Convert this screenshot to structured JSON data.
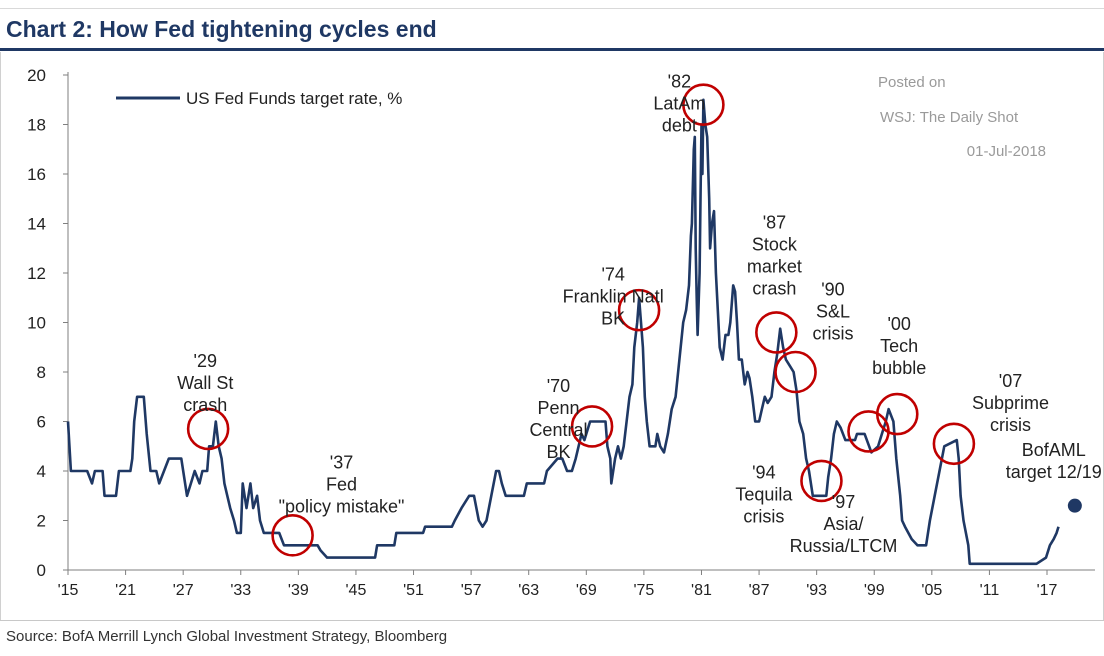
{
  "header": {
    "title": "Chart 2: How Fed tightening cycles end"
  },
  "source": "Source:  BofA Merrill Lynch Global Investment Strategy, Bloomberg",
  "watermark": [
    "Posted on",
    "WSJ: The Daily Shot",
    "01-Jul-2018"
  ],
  "colors": {
    "line": "#1f3864",
    "circle": "#c00000",
    "title": "#1f3864",
    "target_dot": "#1f3864"
  },
  "chart_data": {
    "type": "line",
    "xlim": [
      1915,
      2022
    ],
    "ylim": [
      0,
      20
    ],
    "grid": false,
    "legend_position": "top-left",
    "x_ticks": [
      {
        "value": 1915,
        "label": "'15"
      },
      {
        "value": 1921,
        "label": "'21"
      },
      {
        "value": 1927,
        "label": "'27"
      },
      {
        "value": 1933,
        "label": "'33"
      },
      {
        "value": 1939,
        "label": "'39"
      },
      {
        "value": 1945,
        "label": "'45"
      },
      {
        "value": 1951,
        "label": "'51"
      },
      {
        "value": 1957,
        "label": "'57"
      },
      {
        "value": 1963,
        "label": "'63"
      },
      {
        "value": 1969,
        "label": "'69"
      },
      {
        "value": 1975,
        "label": "'75"
      },
      {
        "value": 1981,
        "label": "'81"
      },
      {
        "value": 1987,
        "label": "'87"
      },
      {
        "value": 1993,
        "label": "'93"
      },
      {
        "value": 1999,
        "label": "'99"
      },
      {
        "value": 2005,
        "label": "'05"
      },
      {
        "value": 2011,
        "label": "'11"
      },
      {
        "value": 2017,
        "label": "'17"
      }
    ],
    "y_ticks": [
      "0",
      "2",
      "4",
      "6",
      "8",
      "10",
      "12",
      "14",
      "16",
      "18",
      "20"
    ],
    "series": [
      {
        "name": "US Fed Funds target rate, %",
        "points": [
          [
            1915,
            6
          ],
          [
            1915.3,
            4
          ],
          [
            1917,
            4
          ],
          [
            1917.5,
            3.5
          ],
          [
            1917.8,
            4
          ],
          [
            1918.6,
            4
          ],
          [
            1918.8,
            3
          ],
          [
            1920,
            3
          ],
          [
            1920.3,
            4
          ],
          [
            1921.5,
            4
          ],
          [
            1921.7,
            4.5
          ],
          [
            1921.9,
            6
          ],
          [
            1922.2,
            7
          ],
          [
            1922.9,
            7
          ],
          [
            1923.2,
            5.5
          ],
          [
            1923.6,
            4
          ],
          [
            1924.2,
            4
          ],
          [
            1924.5,
            3.5
          ],
          [
            1925,
            4
          ],
          [
            1925.5,
            4.5
          ],
          [
            1926.8,
            4.5
          ],
          [
            1927,
            4
          ],
          [
            1927.4,
            3
          ],
          [
            1927.8,
            3.5
          ],
          [
            1928.2,
            4
          ],
          [
            1928.7,
            3.5
          ],
          [
            1929,
            4
          ],
          [
            1929.5,
            4
          ],
          [
            1929.7,
            5
          ],
          [
            1930.1,
            5
          ],
          [
            1930.4,
            6
          ],
          [
            1930.7,
            5
          ],
          [
            1931,
            4.5
          ],
          [
            1931.3,
            3.5
          ],
          [
            1931.6,
            3
          ],
          [
            1931.9,
            2.5
          ],
          [
            1932.3,
            2
          ],
          [
            1932.6,
            1.5
          ],
          [
            1933,
            1.5
          ],
          [
            1933.2,
            3.5
          ],
          [
            1933.6,
            2.5
          ],
          [
            1934,
            3.5
          ],
          [
            1934.3,
            2.5
          ],
          [
            1934.7,
            3
          ],
          [
            1935,
            2
          ],
          [
            1935.4,
            1.5
          ],
          [
            1937,
            1.5
          ],
          [
            1937.5,
            1
          ],
          [
            1941,
            1
          ],
          [
            1941.3,
            0.8
          ],
          [
            1942,
            0.5
          ],
          [
            1947,
            0.5
          ],
          [
            1947.2,
            1
          ],
          [
            1949,
            1
          ],
          [
            1949.2,
            1.5
          ],
          [
            1952,
            1.5
          ],
          [
            1952.2,
            1.75
          ],
          [
            1955,
            1.75
          ],
          [
            1955.3,
            2
          ],
          [
            1956,
            2.5
          ],
          [
            1956.8,
            3
          ],
          [
            1957.3,
            3
          ],
          [
            1957.8,
            2
          ],
          [
            1958.2,
            1.75
          ],
          [
            1958.6,
            2
          ],
          [
            1959.1,
            3
          ],
          [
            1959.6,
            4
          ],
          [
            1959.9,
            4
          ],
          [
            1960.2,
            3.5
          ],
          [
            1960.6,
            3
          ],
          [
            1962.5,
            3
          ],
          [
            1962.8,
            3.5
          ],
          [
            1964.6,
            3.5
          ],
          [
            1964.9,
            4
          ],
          [
            1966,
            4.5
          ],
          [
            1966.5,
            4.5
          ],
          [
            1967,
            4
          ],
          [
            1967.5,
            4
          ],
          [
            1967.9,
            4.5
          ],
          [
            1968.5,
            5.5
          ],
          [
            1968.8,
            5.25
          ],
          [
            1969,
            5.5
          ],
          [
            1969.4,
            6
          ],
          [
            1971,
            6
          ],
          [
            1971.2,
            5
          ],
          [
            1971.5,
            4.5
          ],
          [
            1971.6,
            3.5
          ],
          [
            1972,
            4.5
          ],
          [
            1972.3,
            5
          ],
          [
            1972.6,
            4.5
          ],
          [
            1972.9,
            5
          ],
          [
            1973.2,
            6
          ],
          [
            1973.5,
            7
          ],
          [
            1973.8,
            7.5
          ],
          [
            1974,
            9
          ],
          [
            1974.3,
            10
          ],
          [
            1974.5,
            11
          ],
          [
            1974.7,
            10
          ],
          [
            1974.9,
            9
          ],
          [
            1975.1,
            7
          ],
          [
            1975.3,
            6
          ],
          [
            1975.6,
            5
          ],
          [
            1976.2,
            5
          ],
          [
            1976.4,
            5.5
          ],
          [
            1976.7,
            5
          ],
          [
            1977.1,
            4.75
          ],
          [
            1977.5,
            5.5
          ],
          [
            1977.9,
            6.5
          ],
          [
            1978.3,
            7
          ],
          [
            1978.7,
            8.5
          ],
          [
            1979.1,
            10
          ],
          [
            1979.4,
            10.5
          ],
          [
            1979.7,
            11.5
          ],
          [
            1979.9,
            13.5
          ],
          [
            1980,
            14
          ],
          [
            1980.2,
            17
          ],
          [
            1980.3,
            17.5
          ],
          [
            1980.4,
            13
          ],
          [
            1980.5,
            11
          ],
          [
            1980.6,
            9.5
          ],
          [
            1980.8,
            12
          ],
          [
            1980.9,
            15
          ],
          [
            1981,
            18
          ],
          [
            1981.1,
            16
          ],
          [
            1981.2,
            19
          ],
          [
            1981.4,
            18
          ],
          [
            1981.6,
            17.5
          ],
          [
            1981.8,
            15
          ],
          [
            1981.9,
            13
          ],
          [
            1982.1,
            14
          ],
          [
            1982.3,
            14.5
          ],
          [
            1982.5,
            12
          ],
          [
            1982.7,
            10.5
          ],
          [
            1982.9,
            9
          ],
          [
            1983.2,
            8.5
          ],
          [
            1983.5,
            9.5
          ],
          [
            1983.8,
            9.5
          ],
          [
            1984,
            10
          ],
          [
            1984.3,
            11.5
          ],
          [
            1984.5,
            11.25
          ],
          [
            1984.7,
            10
          ],
          [
            1984.9,
            8.5
          ],
          [
            1985.2,
            8.5
          ],
          [
            1985.5,
            7.5
          ],
          [
            1985.8,
            8
          ],
          [
            1986,
            7.75
          ],
          [
            1986.3,
            7
          ],
          [
            1986.6,
            6
          ],
          [
            1987,
            6
          ],
          [
            1987.3,
            6.5
          ],
          [
            1987.6,
            7
          ],
          [
            1987.9,
            6.75
          ],
          [
            1988.3,
            7
          ],
          [
            1988.6,
            8
          ],
          [
            1988.9,
            8.75
          ],
          [
            1989.2,
            9.75
          ],
          [
            1989.5,
            9
          ],
          [
            1989.8,
            8.5
          ],
          [
            1990.2,
            8.25
          ],
          [
            1990.6,
            8
          ],
          [
            1990.9,
            7.25
          ],
          [
            1991.2,
            6
          ],
          [
            1991.6,
            5.5
          ],
          [
            1991.9,
            4.5
          ],
          [
            1992.2,
            4
          ],
          [
            1992.6,
            3
          ],
          [
            1993,
            3
          ],
          [
            1994,
            3
          ],
          [
            1994.2,
            3.75
          ],
          [
            1994.5,
            4.5
          ],
          [
            1994.8,
            5.5
          ],
          [
            1995.1,
            6
          ],
          [
            1995.5,
            5.75
          ],
          [
            1996,
            5.25
          ],
          [
            1997,
            5.25
          ],
          [
            1997.2,
            5.5
          ],
          [
            1998,
            5.5
          ],
          [
            1998.7,
            4.75
          ],
          [
            1999.4,
            5
          ],
          [
            1999.8,
            5.5
          ],
          [
            2000.2,
            6
          ],
          [
            2000.5,
            6.5
          ],
          [
            2001,
            6
          ],
          [
            2001.3,
            4.5
          ],
          [
            2001.7,
            3
          ],
          [
            2001.9,
            2
          ],
          [
            2002.2,
            1.75
          ],
          [
            2002.9,
            1.25
          ],
          [
            2003.5,
            1
          ],
          [
            2004.4,
            1
          ],
          [
            2004.8,
            2
          ],
          [
            2005.3,
            3
          ],
          [
            2005.8,
            4
          ],
          [
            2006.3,
            5
          ],
          [
            2007.6,
            5.25
          ],
          [
            2007.8,
            4.5
          ],
          [
            2008,
            3
          ],
          [
            2008.3,
            2
          ],
          [
            2008.8,
            1
          ],
          [
            2008.95,
            0.25
          ],
          [
            2015.9,
            0.25
          ],
          [
            2016.9,
            0.5
          ],
          [
            2017.3,
            1
          ],
          [
            2017.7,
            1.25
          ],
          [
            2018,
            1.5
          ],
          [
            2018.2,
            1.75
          ]
        ]
      }
    ],
    "target_point": {
      "x": 2019.9,
      "y": 2.6
    },
    "annotations": [
      {
        "lines": [
          "'29",
          "Wall St",
          "crash"
        ],
        "x": 1929.3,
        "y": 8.2
      },
      {
        "lines": [
          "'37",
          "Fed",
          "\"policy mistake\""
        ],
        "x": 1943.5,
        "y": 4.1
      },
      {
        "lines": [
          "'70",
          "Penn",
          "Central",
          "BK"
        ],
        "x": 1966.1,
        "y": 7.2
      },
      {
        "lines": [
          "'74",
          "Franklin Natl",
          "BK"
        ],
        "x": 1971.8,
        "y": 11.7
      },
      {
        "lines": [
          "'82",
          "LatAm",
          "debt"
        ],
        "x": 1978.7,
        "y": 19.5
      },
      {
        "lines": [
          "'87",
          "Stock",
          "market",
          "crash"
        ],
        "x": 1988.6,
        "y": 13.8
      },
      {
        "lines": [
          "'90",
          "S&L",
          "crisis"
        ],
        "x": 1994.7,
        "y": 11.1
      },
      {
        "lines": [
          "'00",
          "Tech",
          "bubble"
        ],
        "x": 2001.6,
        "y": 9.7
      },
      {
        "lines": [
          "'94",
          "Tequila",
          "crisis"
        ],
        "x": 1987.5,
        "y": 3.7
      },
      {
        "lines": [
          "'97",
          "Asia/",
          "Russia/LTCM"
        ],
        "x": 1995.8,
        "y": 2.5
      },
      {
        "lines": [
          "'07",
          "Subprime",
          "crisis"
        ],
        "x": 2013.2,
        "y": 7.4
      },
      {
        "lines": [
          "BofAML",
          "target 12/19"
        ],
        "x": 2017.7,
        "y": 4.6
      }
    ],
    "highlights": [
      {
        "x": 1929.6,
        "y": 5.7
      },
      {
        "x": 1938.4,
        "y": 1.4
      },
      {
        "x": 1969.6,
        "y": 5.8
      },
      {
        "x": 1974.5,
        "y": 10.5
      },
      {
        "x": 1981.2,
        "y": 18.8
      },
      {
        "x": 1988.8,
        "y": 9.6
      },
      {
        "x": 1990.8,
        "y": 8.0
      },
      {
        "x": 1993.5,
        "y": 3.6
      },
      {
        "x": 1998.4,
        "y": 5.6
      },
      {
        "x": 2001.4,
        "y": 6.3
      },
      {
        "x": 2007.3,
        "y": 5.1
      }
    ]
  }
}
